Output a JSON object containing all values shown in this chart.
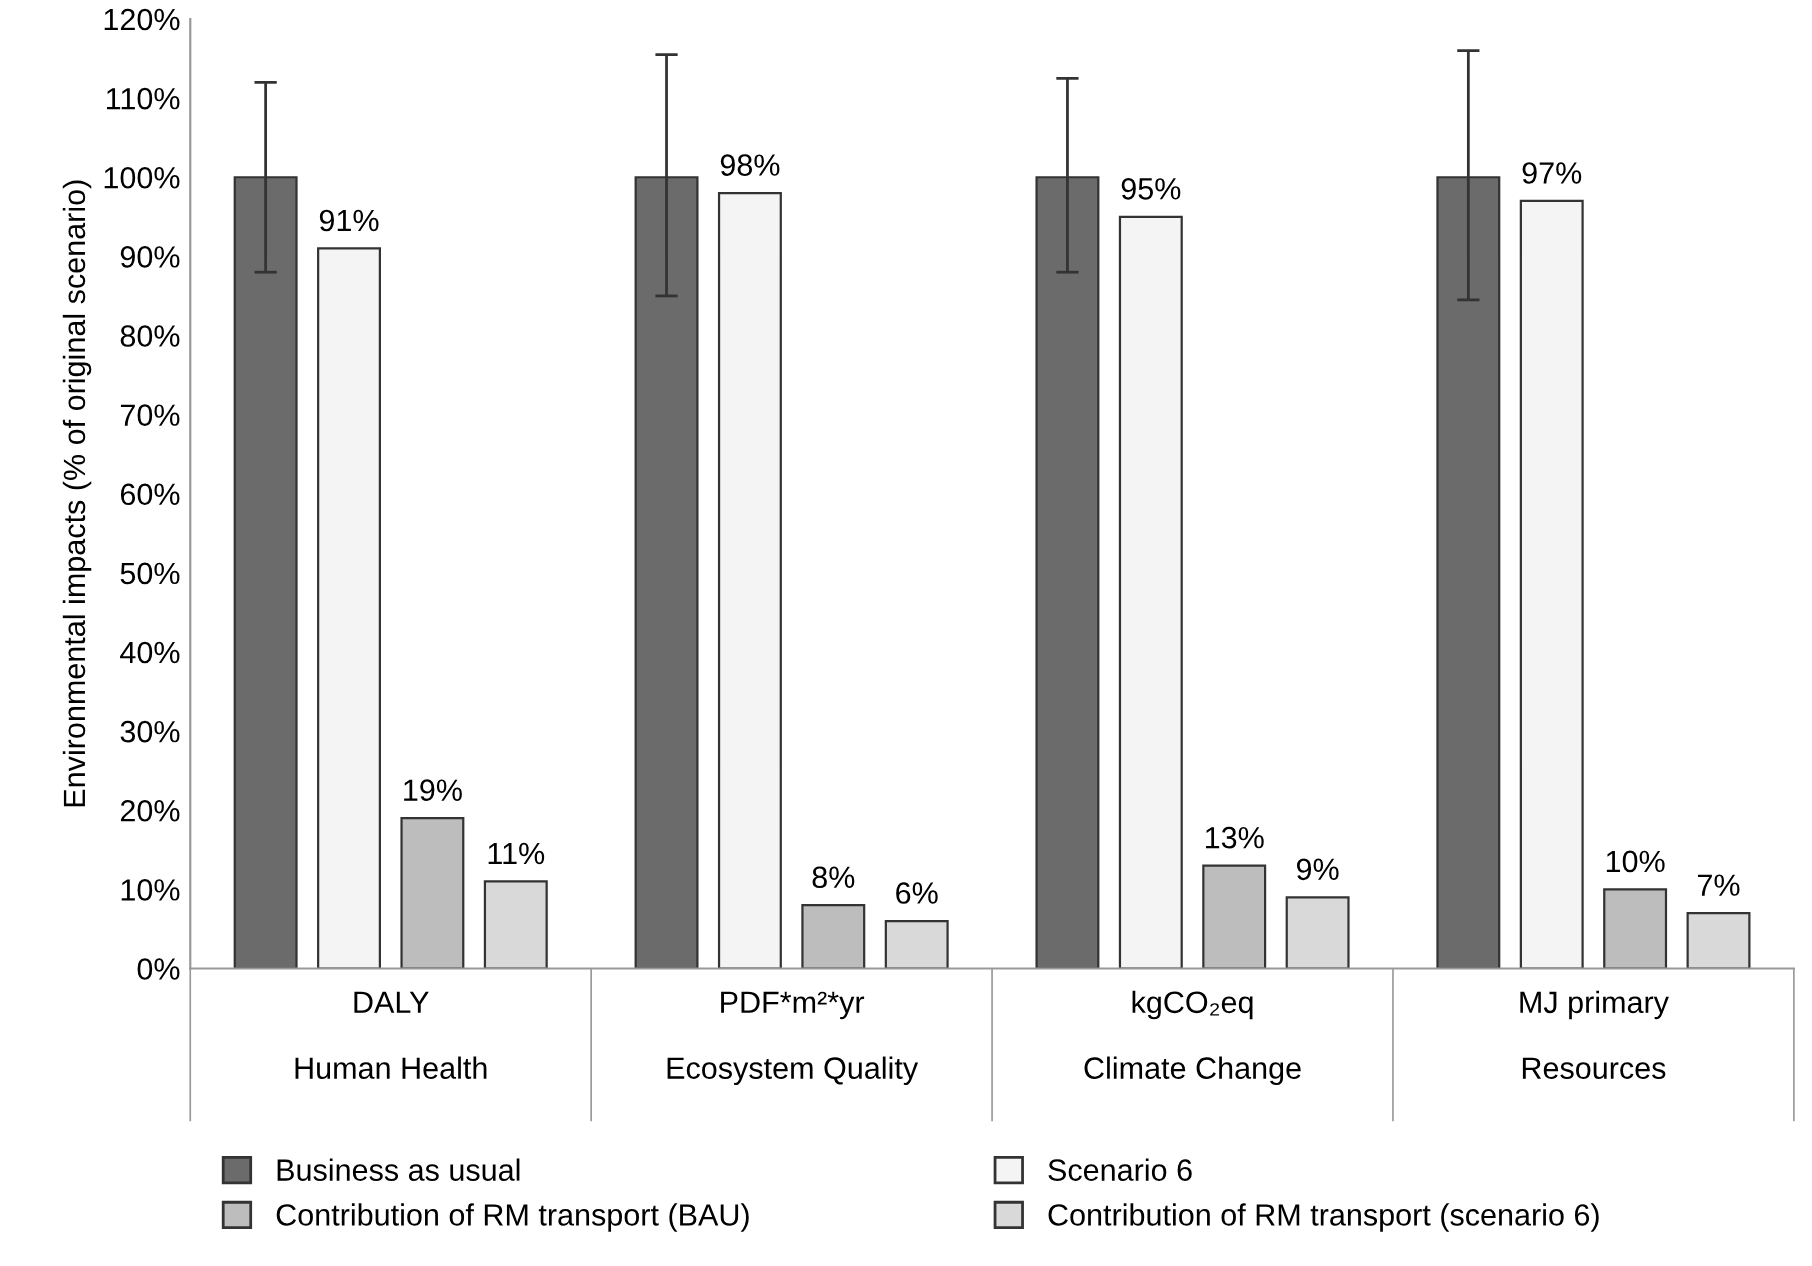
{
  "chart_data": {
    "type": "bar",
    "ylabel": "Environmental impacts (% of original scenario)",
    "categories": [
      "DALY\n\nHuman Health",
      "PDF*m²*yr\n\nEcosystem Quality",
      "kgCO₂eq\n\nClimate Change",
      "MJ primary\n\nResources"
    ],
    "series": [
      {
        "name": "Business as usual",
        "color": "#6b6b6b",
        "values": [
          100,
          100,
          100,
          100
        ],
        "errors": [
          [
            88,
            112
          ],
          [
            85,
            115.5
          ],
          [
            88,
            112.5
          ],
          [
            84.5,
            116
          ]
        ]
      },
      {
        "name": "Scenario 6",
        "color": "#f4f4f4",
        "values": [
          91,
          98,
          95,
          97
        ],
        "value_labels": [
          "91%",
          "98%",
          "95%",
          "97%"
        ]
      },
      {
        "name": "Contribution of RM transport (BAU)",
        "color": "#bdbdbd",
        "values": [
          19,
          8,
          13,
          10
        ],
        "value_labels": [
          "19%",
          "8%",
          "13%",
          "10%"
        ]
      },
      {
        "name": "Contribution of RM transport (scenario 6)",
        "color": "#d9d9d9",
        "values": [
          11,
          6,
          9,
          7
        ],
        "value_labels": [
          "11%",
          "6%",
          "9%",
          "7%"
        ]
      }
    ],
    "ylim": [
      0,
      120
    ],
    "yticks": [
      {
        "value": 0,
        "label": "0%"
      },
      {
        "value": 10,
        "label": "10%"
      },
      {
        "value": 20,
        "label": "20%"
      },
      {
        "value": 30,
        "label": "30%"
      },
      {
        "value": 40,
        "label": "40%"
      },
      {
        "value": 50,
        "label": "50%"
      },
      {
        "value": 60,
        "label": "60%"
      },
      {
        "value": 70,
        "label": "70%"
      },
      {
        "value": 80,
        "label": "80%"
      },
      {
        "value": 90,
        "label": "90%"
      },
      {
        "value": 100,
        "label": "100%"
      },
      {
        "value": 110,
        "label": "110%"
      },
      {
        "value": 120,
        "label": "120%"
      }
    ],
    "grid": false,
    "legend": "bottom"
  }
}
